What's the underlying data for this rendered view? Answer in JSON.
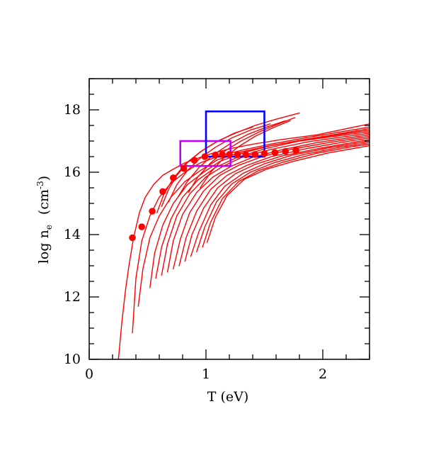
{
  "chart_data": {
    "type": "line",
    "title": "",
    "xlabel": "T (eV)",
    "ylabel_parts": {
      "base": "log n",
      "subscript": "e",
      "unit_open": "(cm",
      "superscript": "-3",
      "unit_close": ")"
    },
    "xlim": [
      0,
      2.4
    ],
    "ylim": [
      10,
      19
    ],
    "x_ticks": [
      0,
      1,
      2
    ],
    "y_ticks": [
      10,
      12,
      14,
      16,
      18
    ],
    "grid": false,
    "legend": "none",
    "colors": {
      "curves": "#ff0000",
      "points": "#ff0000",
      "box_blue": "#0000ff",
      "box_magenta": "#bf00ff",
      "axes": "#000000"
    },
    "series": [
      {
        "x": [
          0.25,
          0.28,
          0.31,
          0.34,
          0.38,
          0.43,
          0.48,
          0.55,
          0.63,
          0.72,
          0.82,
          0.93,
          1.05,
          1.2,
          1.4,
          1.65,
          1.95,
          2.4
        ],
        "y": [
          10.0,
          11.2,
          12.2,
          13.0,
          13.9,
          14.7,
          15.2,
          15.6,
          15.9,
          16.1,
          16.3,
          16.45,
          16.6,
          16.75,
          16.9,
          17.05,
          17.2,
          17.55
        ]
      },
      {
        "x": [
          0.37,
          0.4,
          0.45,
          0.52,
          0.6,
          0.7,
          0.82,
          0.95,
          1.1,
          1.3,
          1.55,
          1.85,
          2.4
        ],
        "y": [
          10.85,
          12.6,
          13.8,
          14.6,
          15.2,
          15.65,
          16.0,
          16.3,
          16.5,
          16.7,
          16.9,
          17.1,
          17.45
        ]
      },
      {
        "x": [
          0.42,
          0.46,
          0.52,
          0.6,
          0.7,
          0.82,
          0.95,
          1.1,
          1.3,
          1.55,
          1.85,
          2.4
        ],
        "y": [
          11.7,
          12.9,
          13.9,
          14.6,
          15.2,
          15.7,
          16.05,
          16.4,
          16.65,
          16.85,
          17.05,
          17.4
        ]
      },
      {
        "x": [
          0.52,
          0.56,
          0.63,
          0.72,
          0.84,
          0.98,
          1.12,
          1.3,
          1.55,
          1.85,
          2.4
        ],
        "y": [
          12.3,
          13.4,
          14.3,
          15.0,
          15.6,
          16.0,
          16.35,
          16.6,
          16.85,
          17.05,
          17.35
        ]
      },
      {
        "x": [
          0.57,
          0.62,
          0.7,
          0.8,
          0.93,
          1.08,
          1.25,
          1.5,
          1.8,
          2.4
        ],
        "y": [
          12.6,
          13.6,
          14.5,
          15.2,
          15.75,
          16.15,
          16.45,
          16.75,
          17.0,
          17.3
        ]
      },
      {
        "x": [
          0.62,
          0.67,
          0.75,
          0.86,
          1.0,
          1.15,
          1.32,
          1.58,
          1.88,
          2.4
        ],
        "y": [
          12.7,
          13.7,
          14.6,
          15.3,
          15.85,
          16.2,
          16.5,
          16.75,
          16.98,
          17.25
        ]
      },
      {
        "x": [
          0.67,
          0.72,
          0.8,
          0.92,
          1.06,
          1.22,
          1.4,
          1.65,
          1.95,
          2.4
        ],
        "y": [
          12.8,
          13.8,
          14.65,
          15.35,
          15.85,
          16.2,
          16.48,
          16.72,
          16.95,
          17.2
        ]
      },
      {
        "x": [
          0.72,
          0.78,
          0.86,
          0.98,
          1.12,
          1.28,
          1.48,
          1.75,
          2.05,
          2.4
        ],
        "y": [
          12.9,
          13.85,
          14.7,
          15.4,
          15.9,
          16.22,
          16.5,
          16.75,
          16.95,
          17.15
        ]
      },
      {
        "x": [
          0.77,
          0.83,
          0.92,
          1.04,
          1.18,
          1.35,
          1.56,
          1.85,
          2.15,
          2.4
        ],
        "y": [
          13.0,
          13.9,
          14.75,
          15.45,
          15.9,
          16.22,
          16.5,
          16.75,
          16.95,
          17.1
        ]
      },
      {
        "x": [
          0.82,
          0.88,
          0.98,
          1.1,
          1.25,
          1.42,
          1.65,
          1.95,
          2.25,
          2.4
        ],
        "y": [
          13.15,
          14.0,
          14.85,
          15.5,
          15.95,
          16.25,
          16.52,
          16.75,
          16.95,
          17.05
        ]
      },
      {
        "x": [
          0.87,
          0.94,
          1.04,
          1.16,
          1.32,
          1.5,
          1.74,
          2.05,
          2.4
        ],
        "y": [
          13.3,
          14.1,
          14.95,
          15.55,
          15.97,
          16.27,
          16.55,
          16.78,
          17.0
        ]
      },
      {
        "x": [
          0.92,
          0.99,
          1.09,
          1.22,
          1.38,
          1.58,
          1.84,
          2.15,
          2.4
        ],
        "y": [
          13.45,
          14.25,
          15.05,
          15.62,
          16.0,
          16.3,
          16.57,
          16.8,
          16.95
        ]
      },
      {
        "x": [
          0.97,
          1.04,
          1.14,
          1.28,
          1.45,
          1.66,
          1.94,
          2.25,
          2.4
        ],
        "y": [
          13.6,
          14.4,
          15.15,
          15.7,
          16.05,
          16.32,
          16.6,
          16.82,
          16.9
        ]
      },
      {
        "x": [
          1.01,
          1.08,
          1.18,
          1.33,
          1.52,
          1.75,
          2.05,
          2.4
        ],
        "y": [
          13.75,
          14.55,
          15.25,
          15.78,
          16.1,
          16.35,
          16.62,
          16.85
        ]
      },
      {
        "x": [
          0.62,
          0.68,
          0.75,
          0.85,
          0.97,
          1.1,
          1.25,
          1.42,
          1.6,
          1.8
        ],
        "y": [
          14.9,
          15.45,
          15.9,
          16.35,
          16.7,
          17.0,
          17.25,
          17.5,
          17.7,
          17.9
        ]
      },
      {
        "x": [
          0.58,
          0.64,
          0.72,
          0.82,
          0.95,
          1.08,
          1.24,
          1.4
        ],
        "y": [
          14.7,
          15.3,
          15.8,
          16.25,
          16.65,
          16.95,
          17.25,
          17.45
        ]
      },
      {
        "x": [
          0.68,
          0.75,
          0.84,
          0.95,
          1.08,
          1.22,
          1.38,
          1.55
        ],
        "y": [
          15.05,
          15.6,
          16.05,
          16.45,
          16.8,
          17.1,
          17.35,
          17.55
        ]
      },
      {
        "x": [
          0.76,
          0.84,
          0.94,
          1.06,
          1.2,
          1.35,
          1.52,
          1.68
        ],
        "y": [
          15.2,
          15.7,
          16.15,
          16.55,
          16.9,
          17.2,
          17.45,
          17.65
        ]
      },
      {
        "x": [
          0.85,
          0.93,
          1.04,
          1.16,
          1.3,
          1.46,
          1.62,
          1.76
        ],
        "y": [
          15.35,
          15.85,
          16.3,
          16.68,
          17.0,
          17.3,
          17.55,
          17.75
        ]
      },
      {
        "x": [
          0.95,
          1.04,
          1.15,
          1.28,
          1.42,
          1.57,
          1.72
        ],
        "y": [
          15.5,
          16.0,
          16.45,
          16.82,
          17.15,
          17.42,
          17.65
        ]
      }
    ],
    "points": {
      "x": [
        0.37,
        0.45,
        0.54,
        0.63,
        0.72,
        0.81,
        0.9,
        0.99,
        1.08,
        1.14,
        1.2,
        1.27,
        1.34,
        1.42,
        1.5,
        1.59,
        1.68,
        1.77
      ],
      "y": [
        13.9,
        14.25,
        14.75,
        15.38,
        15.82,
        16.12,
        16.38,
        16.5,
        16.55,
        16.57,
        16.57,
        16.56,
        16.56,
        16.57,
        16.6,
        16.63,
        16.67,
        16.7
      ]
    },
    "boxes": [
      {
        "color": "box_magenta",
        "x": [
          0.78,
          1.21
        ],
        "y": [
          16.2,
          17.0
        ]
      },
      {
        "color": "box_blue",
        "x": [
          1.0,
          1.5
        ],
        "y": [
          16.5,
          17.95
        ]
      }
    ]
  }
}
